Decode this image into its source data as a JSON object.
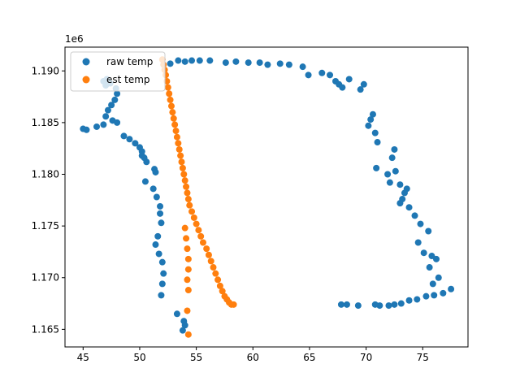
{
  "chart_data": {
    "type": "scatter",
    "title": "",
    "xlabel": "",
    "ylabel": "",
    "xlim": [
      43.4,
      79.0
    ],
    "ylim": [
      1163300,
      1192300
    ],
    "xticks": [
      45,
      50,
      55,
      60,
      65,
      70,
      75
    ],
    "yticks": [
      1165000,
      1170000,
      1175000,
      1180000,
      1185000,
      1190000
    ],
    "ytick_labels": [
      "1.165",
      "1.170",
      "1.175",
      "1.180",
      "1.185",
      "1.190"
    ],
    "y_offset_label": "1e6",
    "grid": false,
    "legend": {
      "placement": "top-left"
    },
    "series": [
      {
        "name": "raw temp",
        "color": "#1f77b4",
        "x": [
          45.0,
          45.3,
          46.2,
          46.8,
          47.0,
          47.2,
          47.5,
          47.8,
          48.0,
          47.9,
          47.4,
          47.1,
          46.8,
          47.0,
          47.6,
          48.0,
          48.6,
          49.1,
          49.6,
          50.0,
          50.2,
          50.6,
          51.3,
          51.4,
          50.4,
          50.2,
          50.5,
          51.2,
          51.5,
          51.8,
          51.8,
          51.9,
          51.6,
          51.4,
          51.7,
          52.0,
          52.1,
          52.0,
          51.9,
          53.3,
          53.9,
          54.0,
          53.8,
          52.7,
          53.4,
          54.0,
          54.6,
          55.3,
          56.2,
          57.6,
          58.5,
          59.6,
          60.6,
          61.3,
          62.4,
          63.2,
          64.4,
          64.9,
          66.1,
          66.8,
          67.3,
          67.6,
          67.9,
          68.5,
          69.5,
          69.8,
          70.6,
          70.4,
          70.2,
          70.8,
          71.0,
          70.9,
          72.5,
          72.3,
          72.6,
          71.9,
          72.1,
          73.0,
          73.4,
          73.2,
          73.6,
          73.0,
          73.8,
          74.3,
          74.8,
          75.5,
          74.6,
          75.1,
          75.8,
          76.2,
          75.6,
          76.4,
          75.9,
          77.5,
          76.8,
          76.0,
          75.3,
          74.5,
          73.8,
          73.1,
          72.5,
          72.0,
          71.2,
          70.8,
          69.3,
          68.3,
          67.8
        ],
        "y": [
          1184400,
          1184300,
          1184600,
          1184800,
          1185600,
          1186200,
          1186700,
          1187200,
          1187800,
          1188300,
          1188800,
          1189200,
          1189000,
          1188600,
          1185200,
          1185000,
          1183700,
          1183400,
          1183000,
          1182600,
          1181800,
          1181200,
          1180500,
          1180200,
          1181600,
          1182200,
          1179300,
          1178600,
          1177800,
          1176900,
          1176200,
          1175300,
          1174000,
          1173200,
          1172300,
          1171500,
          1170400,
          1169400,
          1168300,
          1166500,
          1165800,
          1165400,
          1164900,
          1190700,
          1191000,
          1190900,
          1191000,
          1191000,
          1191000,
          1190800,
          1190900,
          1190800,
          1190800,
          1190600,
          1190700,
          1190600,
          1190400,
          1189600,
          1189800,
          1189600,
          1189000,
          1188700,
          1188400,
          1189200,
          1188200,
          1188700,
          1185800,
          1185300,
          1184700,
          1184000,
          1183100,
          1180600,
          1182400,
          1181600,
          1180300,
          1180000,
          1179200,
          1179000,
          1178200,
          1177600,
          1178600,
          1177200,
          1176800,
          1176000,
          1175200,
          1174500,
          1173400,
          1172400,
          1172100,
          1171800,
          1171000,
          1170000,
          1169400,
          1168900,
          1168500,
          1168300,
          1168200,
          1167900,
          1167800,
          1167500,
          1167400,
          1167300,
          1167300,
          1167400,
          1167300,
          1167400,
          1167400
        ]
      },
      {
        "name": "est temp",
        "color": "#ff7f0e",
        "x": [
          52.0,
          52.1,
          52.2,
          52.3,
          52.4,
          52.5,
          52.6,
          52.7,
          52.8,
          52.9,
          53.0,
          53.1,
          53.2,
          53.3,
          53.4,
          53.5,
          53.6,
          53.7,
          53.8,
          53.9,
          54.0,
          54.1,
          54.2,
          54.3,
          54.4,
          54.6,
          54.8,
          55.0,
          55.2,
          55.4,
          55.6,
          55.9,
          56.1,
          56.3,
          56.5,
          56.7,
          56.9,
          57.1,
          57.3,
          57.5,
          57.7,
          57.9,
          58.1,
          58.3,
          54.0,
          54.1,
          54.2,
          54.3,
          54.3,
          54.2,
          54.3,
          54.2,
          54.3
        ],
        "y": [
          1191100,
          1190600,
          1190100,
          1189600,
          1189000,
          1188400,
          1187800,
          1187200,
          1186600,
          1186000,
          1185400,
          1184800,
          1184200,
          1183600,
          1183000,
          1182400,
          1181800,
          1181200,
          1180600,
          1180000,
          1179400,
          1178800,
          1178200,
          1177600,
          1177000,
          1176400,
          1175800,
          1175200,
          1174600,
          1174000,
          1173400,
          1172800,
          1172200,
          1171600,
          1171000,
          1170400,
          1169800,
          1169200,
          1168700,
          1168200,
          1167900,
          1167600,
          1167400,
          1167400,
          1174800,
          1173800,
          1172800,
          1171800,
          1170800,
          1169800,
          1168800,
          1166800,
          1164500
        ]
      }
    ]
  }
}
